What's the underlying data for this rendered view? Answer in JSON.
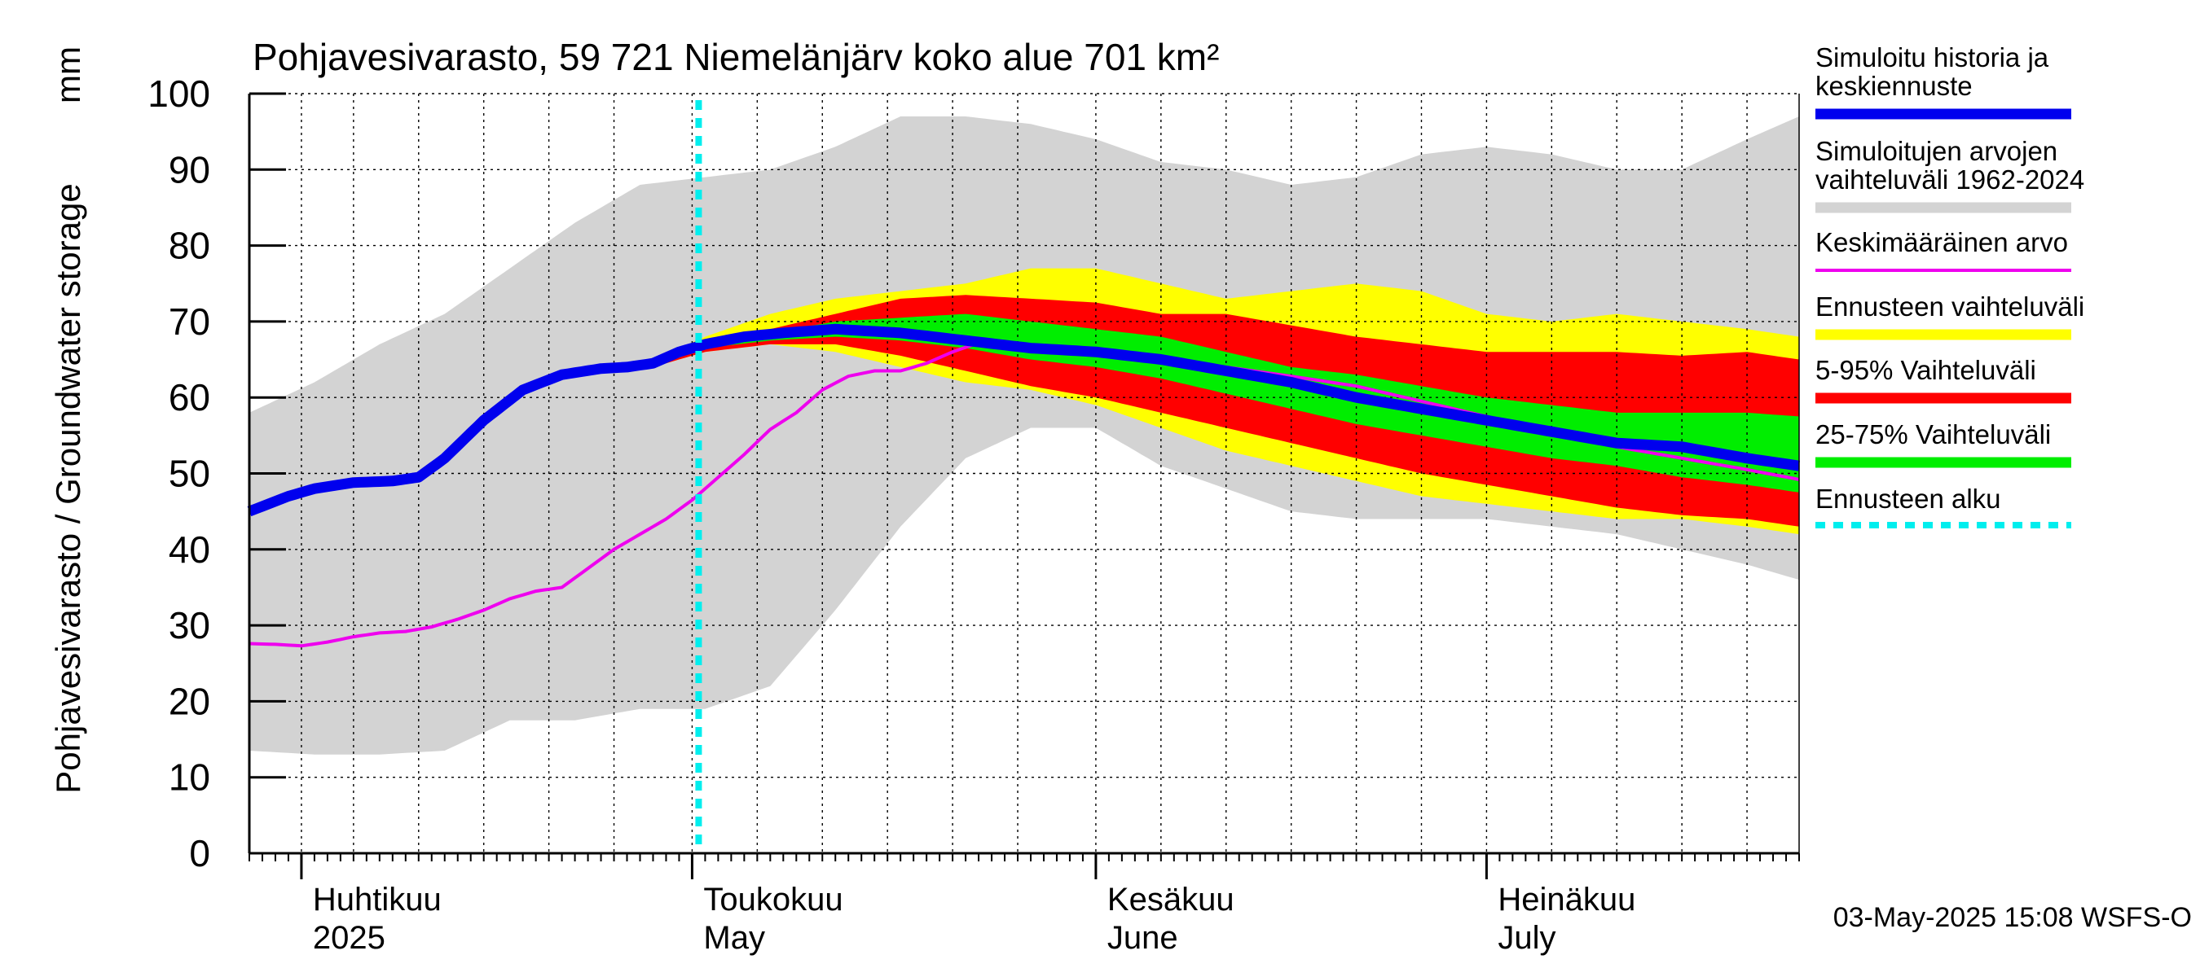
{
  "chart_data": {
    "type": "area",
    "title": "Pohjavesivarasto, 59 721 Niemelänjärv koko alue 701 km²",
    "unit_label": "mm",
    "ylabel": "Pohjavesivarasto / Groundwater storage",
    "ylim": [
      0,
      100
    ],
    "yticks": [
      0,
      10,
      20,
      30,
      40,
      50,
      60,
      70,
      80,
      90,
      100
    ],
    "x_start": "2025-03-28",
    "x_end": "2025-08-05",
    "forecast_start_day": 34.5,
    "month_labels": [
      {
        "day": 4,
        "line1": "Huhtikuu",
        "line2": "2025"
      },
      {
        "day": 34,
        "line1": "Toukokuu",
        "line2": "May"
      },
      {
        "day": 65,
        "line1": "Kesäkuu",
        "line2": "June"
      },
      {
        "day": 95,
        "line1": "Heinäkuu",
        "line2": "July"
      }
    ],
    "month_boundaries": [
      4,
      34,
      65,
      95
    ],
    "week_gridlines": [
      8,
      13,
      18,
      23,
      28,
      39,
      44,
      49,
      54,
      59,
      70,
      75,
      80,
      85,
      90,
      100,
      105,
      110,
      115
    ],
    "footer": "03-May-2025 15:08 WSFS-O",
    "colors": {
      "history": "#0000ee",
      "range": "#d3d3d3",
      "mean": "#ee00ee",
      "forecast_range": "#ffff00",
      "p5_95": "#ff0000",
      "p25_75": "#00ee00",
      "forecast_start": "#00eeee"
    },
    "legend": [
      {
        "key": "history",
        "line1": "Simuloitu historia ja",
        "line2": "keskiennuste",
        "style": "thick"
      },
      {
        "key": "range",
        "line1": "Simuloitujen arvojen",
        "line2": "vaihteluväli 1962-2024",
        "style": "band"
      },
      {
        "key": "mean",
        "line1": "Keskimääräinen arvo",
        "line2": "",
        "style": "thin"
      },
      {
        "key": "forecast_range",
        "line1": "Ennusteen vaihteluväli",
        "line2": "",
        "style": "band"
      },
      {
        "key": "p5_95",
        "line1": "5-95% Vaihteluväli",
        "line2": "",
        "style": "band"
      },
      {
        "key": "p25_75",
        "line1": "25-75% Vaihteluväli",
        "line2": "",
        "style": "band"
      },
      {
        "key": "forecast_start",
        "line1": "Ennusteen alku",
        "line2": "",
        "style": "dotted"
      }
    ],
    "series": {
      "range_upper": {
        "x": [
          0,
          5,
          10,
          15,
          20,
          25,
          30,
          35,
          40,
          45,
          50,
          55,
          60,
          65,
          70,
          75,
          80,
          85,
          90,
          95,
          100,
          105,
          110,
          115,
          119
        ],
        "y": [
          58,
          62,
          67,
          71,
          77,
          83,
          88,
          89,
          90,
          93,
          97,
          97,
          96,
          94,
          91,
          90,
          88,
          89,
          92,
          93,
          92,
          90,
          90,
          94,
          97
        ]
      },
      "range_lower": {
        "x": [
          0,
          5,
          10,
          15,
          20,
          25,
          30,
          35,
          40,
          45,
          50,
          55,
          60,
          65,
          70,
          75,
          80,
          85,
          90,
          95,
          100,
          105,
          110,
          115,
          119
        ],
        "y": [
          13.5,
          13,
          13,
          13.5,
          17.5,
          17.5,
          19,
          19,
          22,
          32,
          43,
          52,
          56,
          56,
          51,
          48,
          45,
          44,
          44,
          44,
          43,
          42,
          40,
          38,
          36
        ]
      },
      "forecast_upper": {
        "x": [
          31,
          35,
          40,
          45,
          50,
          55,
          60,
          65,
          70,
          75,
          80,
          85,
          90,
          95,
          100,
          105,
          110,
          115,
          119
        ],
        "y": [
          65,
          68,
          71,
          73,
          74,
          75,
          77,
          77,
          75,
          73,
          74,
          75,
          74,
          71,
          70,
          71,
          70,
          69,
          68
        ]
      },
      "forecast_lower": {
        "x": [
          31,
          35,
          40,
          45,
          50,
          55,
          60,
          65,
          70,
          75,
          80,
          85,
          90,
          95,
          100,
          105,
          110,
          115,
          119
        ],
        "y": [
          64,
          66,
          67,
          66,
          64,
          62,
          61,
          59,
          56,
          53,
          51,
          49,
          47,
          46,
          45,
          44,
          44,
          43,
          42
        ]
      },
      "p95": {
        "x": [
          31,
          35,
          40,
          45,
          50,
          55,
          60,
          65,
          70,
          75,
          80,
          85,
          90,
          95,
          100,
          105,
          110,
          115,
          119
        ],
        "y": [
          65,
          67.5,
          69,
          71,
          73,
          73.5,
          73,
          72.5,
          71,
          71,
          69.5,
          68,
          67,
          66,
          66,
          66,
          65.5,
          66,
          65
        ]
      },
      "p5": {
        "x": [
          31,
          35,
          40,
          45,
          50,
          55,
          60,
          65,
          70,
          75,
          80,
          85,
          90,
          95,
          100,
          105,
          110,
          115,
          119
        ],
        "y": [
          64,
          66,
          67,
          67,
          65.5,
          63.5,
          61.5,
          60,
          58,
          56,
          54,
          52,
          50,
          48.5,
          47,
          45.5,
          44.5,
          44,
          43
        ]
      },
      "p75": {
        "x": [
          31,
          35,
          40,
          45,
          50,
          55,
          60,
          65,
          70,
          75,
          80,
          85,
          90,
          95,
          100,
          105,
          110,
          115,
          119
        ],
        "y": [
          64.5,
          67.5,
          68.5,
          70,
          70.5,
          71,
          70,
          69,
          68,
          66,
          64,
          63,
          61.5,
          60,
          59,
          58,
          58,
          58,
          57.5
        ]
      },
      "p25": {
        "x": [
          31,
          35,
          40,
          45,
          50,
          55,
          60,
          65,
          70,
          75,
          80,
          85,
          90,
          95,
          100,
          105,
          110,
          115,
          119
        ],
        "y": [
          64,
          66.5,
          67.5,
          68,
          67.5,
          66.5,
          65,
          64,
          62.5,
          60.5,
          58.5,
          56.5,
          55,
          53.5,
          52,
          51,
          49.5,
          48.5,
          47.5
        ]
      },
      "history_median": {
        "x": [
          0,
          3,
          5,
          8,
          11,
          13,
          15,
          18,
          21,
          24,
          27,
          29,
          31,
          33,
          35,
          38,
          41,
          45,
          50,
          55,
          60,
          65,
          70,
          75,
          80,
          85,
          90,
          95,
          100,
          105,
          110,
          115,
          119
        ],
        "y": [
          45,
          47,
          48,
          48.8,
          49,
          49.5,
          52,
          57,
          61,
          63,
          63.8,
          64,
          64.5,
          66,
          67,
          68,
          68.5,
          69,
          68.5,
          67.5,
          66.5,
          66,
          65,
          63.5,
          62,
          60,
          58.5,
          57,
          55.5,
          54,
          53.5,
          52,
          51
        ]
      },
      "mean": {
        "x": [
          0,
          2,
          4,
          6,
          8,
          10,
          12,
          14,
          16,
          18,
          20,
          22,
          24,
          26,
          28,
          30,
          32,
          34,
          36,
          38,
          40,
          42,
          44,
          46,
          48,
          50,
          52,
          54,
          56,
          58,
          60,
          65,
          70,
          75,
          80,
          85,
          90,
          95,
          100,
          105,
          110,
          115,
          119
        ],
        "y": [
          27.6,
          27.5,
          27.3,
          27.8,
          28.5,
          29,
          29.2,
          29.8,
          30.8,
          32,
          33.5,
          34.5,
          35,
          37.5,
          40,
          42,
          44,
          46.5,
          49.5,
          52.5,
          55.8,
          58,
          61,
          62.8,
          63.5,
          63.5,
          64.5,
          66,
          67.2,
          67,
          66.8,
          66,
          65,
          64,
          62.8,
          61.5,
          59.5,
          57.5,
          55.5,
          53.5,
          52,
          50.5,
          49.2
        ]
      }
    }
  }
}
